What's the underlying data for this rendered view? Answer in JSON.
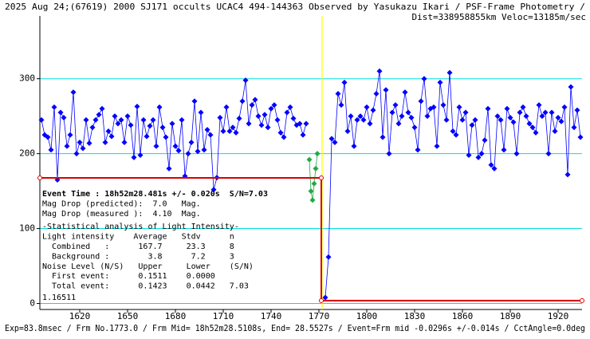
{
  "chart_data": {
    "type": "line",
    "title": "2025 Aug 24;(67619) 2000 SJ171 occults UCAC4 494-144363 Observed by Yasukazu Ikari / PSF-Frame Photometry /",
    "subtitle": "Dist=338958855km Veloc=13185m/sec",
    "footer": "Exp=83.8msec / Frm No.1773.0 / Frm Mid= 18h52m28.5108s, End= 28.5527s / Event=Frm mid -0.0296s +/-0.014s / CctAngle=0.0deg",
    "annotations": [
      "Event Time : 18h52m28.481s +/- 0.020s  S/N=7.03",
      "Mag Drop (predicted):  7.0   Mag.",
      "Mag Drop (measured ):  4.10  Mag.",
      "-Statistical analysis of Light Intensity-",
      "Light intensity    Average   Stdv      n",
      "  Combined   :      167.7     23.3     8",
      "  Background :        3.8      7.2     3",
      "Noise Level (N/S)   Upper     Lower    (S/N)",
      "  First event:      0.1511    0.0000",
      "  Total event:      0.1423    0.0442   7.03",
      "1.16511"
    ],
    "xlim": [
      1595,
      1935
    ],
    "ylim": [
      -8,
      371
    ],
    "xticks": [
      1620,
      1650,
      1680,
      1710,
      1740,
      1770,
      1800,
      1830,
      1860,
      1890,
      1920
    ],
    "yticks": [
      0,
      100,
      200,
      300
    ],
    "grid": true,
    "grid_color": "#00e0e0",
    "event_x": 1772,
    "event_color": "#ffff00",
    "series": [
      {
        "color": "#0000ff",
        "marker": "diamond",
        "x": [
          1596,
          1598,
          1600,
          1602,
          1604,
          1606,
          1608,
          1610,
          1612,
          1614,
          1616,
          1618,
          1620,
          1622,
          1624,
          1626,
          1628,
          1630,
          1632,
          1634,
          1636,
          1638,
          1640,
          1642,
          1644,
          1646,
          1648,
          1650,
          1652,
          1654,
          1656,
          1658,
          1660,
          1662,
          1664,
          1666,
          1668,
          1670,
          1672,
          1674,
          1676,
          1678,
          1680,
          1682,
          1684,
          1686,
          1688,
          1690,
          1692,
          1694,
          1696,
          1698,
          1700,
          1702,
          1704,
          1706,
          1708,
          1710,
          1712,
          1714,
          1716,
          1718,
          1720,
          1722,
          1724,
          1726,
          1728,
          1730,
          1732,
          1734,
          1736,
          1738,
          1740,
          1742,
          1744,
          1746,
          1748,
          1750,
          1752,
          1754,
          1756,
          1758,
          1760,
          1762
        ],
        "values": [
          245,
          225,
          222,
          205,
          262,
          165,
          255,
          248,
          210,
          225,
          282,
          200,
          215,
          207,
          245,
          214,
          235,
          245,
          252,
          260,
          215,
          230,
          223,
          250,
          240,
          245,
          215,
          250,
          238,
          195,
          263,
          198,
          245,
          223,
          237,
          245,
          210,
          262,
          235,
          222,
          180,
          240,
          210,
          204,
          245,
          170,
          200,
          215,
          270,
          203,
          255,
          205,
          232,
          225,
          152,
          168,
          248,
          230,
          262,
          230,
          235,
          228,
          247,
          270,
          298,
          240,
          265,
          272,
          250,
          238,
          252,
          235,
          260,
          265,
          245,
          228,
          222,
          255,
          262,
          247,
          238,
          240,
          225,
          240
        ]
      },
      {
        "color": "#22aa44",
        "marker": "diamond",
        "x": [
          1764,
          1765,
          1766,
          1767,
          1768,
          1769
        ],
        "values": [
          192,
          150,
          138,
          160,
          180,
          200
        ]
      },
      {
        "color": "#0000ff",
        "marker": "diamond",
        "x": [
          1774,
          1776,
          1778,
          1780,
          1782,
          1784,
          1786,
          1788,
          1790,
          1792,
          1794,
          1796,
          1798,
          1800,
          1802,
          1804,
          1806,
          1808,
          1810,
          1812,
          1814,
          1816,
          1818,
          1820,
          1822,
          1824,
          1826,
          1828,
          1830,
          1832,
          1834,
          1836,
          1838,
          1840,
          1842,
          1844,
          1846,
          1848,
          1850,
          1852,
          1854,
          1856,
          1858,
          1860,
          1862,
          1864,
          1866,
          1868,
          1870,
          1872,
          1874,
          1876,
          1878,
          1880,
          1882,
          1884,
          1886,
          1888,
          1890,
          1892,
          1894,
          1896,
          1898,
          1900,
          1902,
          1904,
          1906,
          1908,
          1910,
          1912,
          1914,
          1916,
          1918,
          1920,
          1922,
          1924,
          1926,
          1928,
          1930,
          1932,
          1934
        ],
        "values": [
          8,
          62,
          220,
          215,
          280,
          265,
          295,
          230,
          250,
          210,
          245,
          250,
          245,
          262,
          240,
          258,
          280,
          310,
          222,
          285,
          200,
          255,
          265,
          240,
          250,
          282,
          255,
          248,
          235,
          205,
          270,
          300,
          250,
          260,
          262,
          210,
          295,
          265,
          245,
          308,
          230,
          225,
          262,
          245,
          255,
          198,
          238,
          245,
          195,
          200,
          218,
          260,
          185,
          180,
          250,
          245,
          205,
          260,
          248,
          242,
          200,
          255,
          262,
          250,
          240,
          235,
          228,
          265,
          250,
          255,
          200,
          255,
          230,
          248,
          243,
          262,
          172,
          289,
          235,
          258,
          222
        ]
      },
      {
        "color": "#dd0000",
        "marker": "circle",
        "x": [
          1595,
          1771.5,
          1771.5,
          1935
        ],
        "values": [
          167.7,
          167.7,
          3.8,
          3.8
        ]
      }
    ]
  }
}
